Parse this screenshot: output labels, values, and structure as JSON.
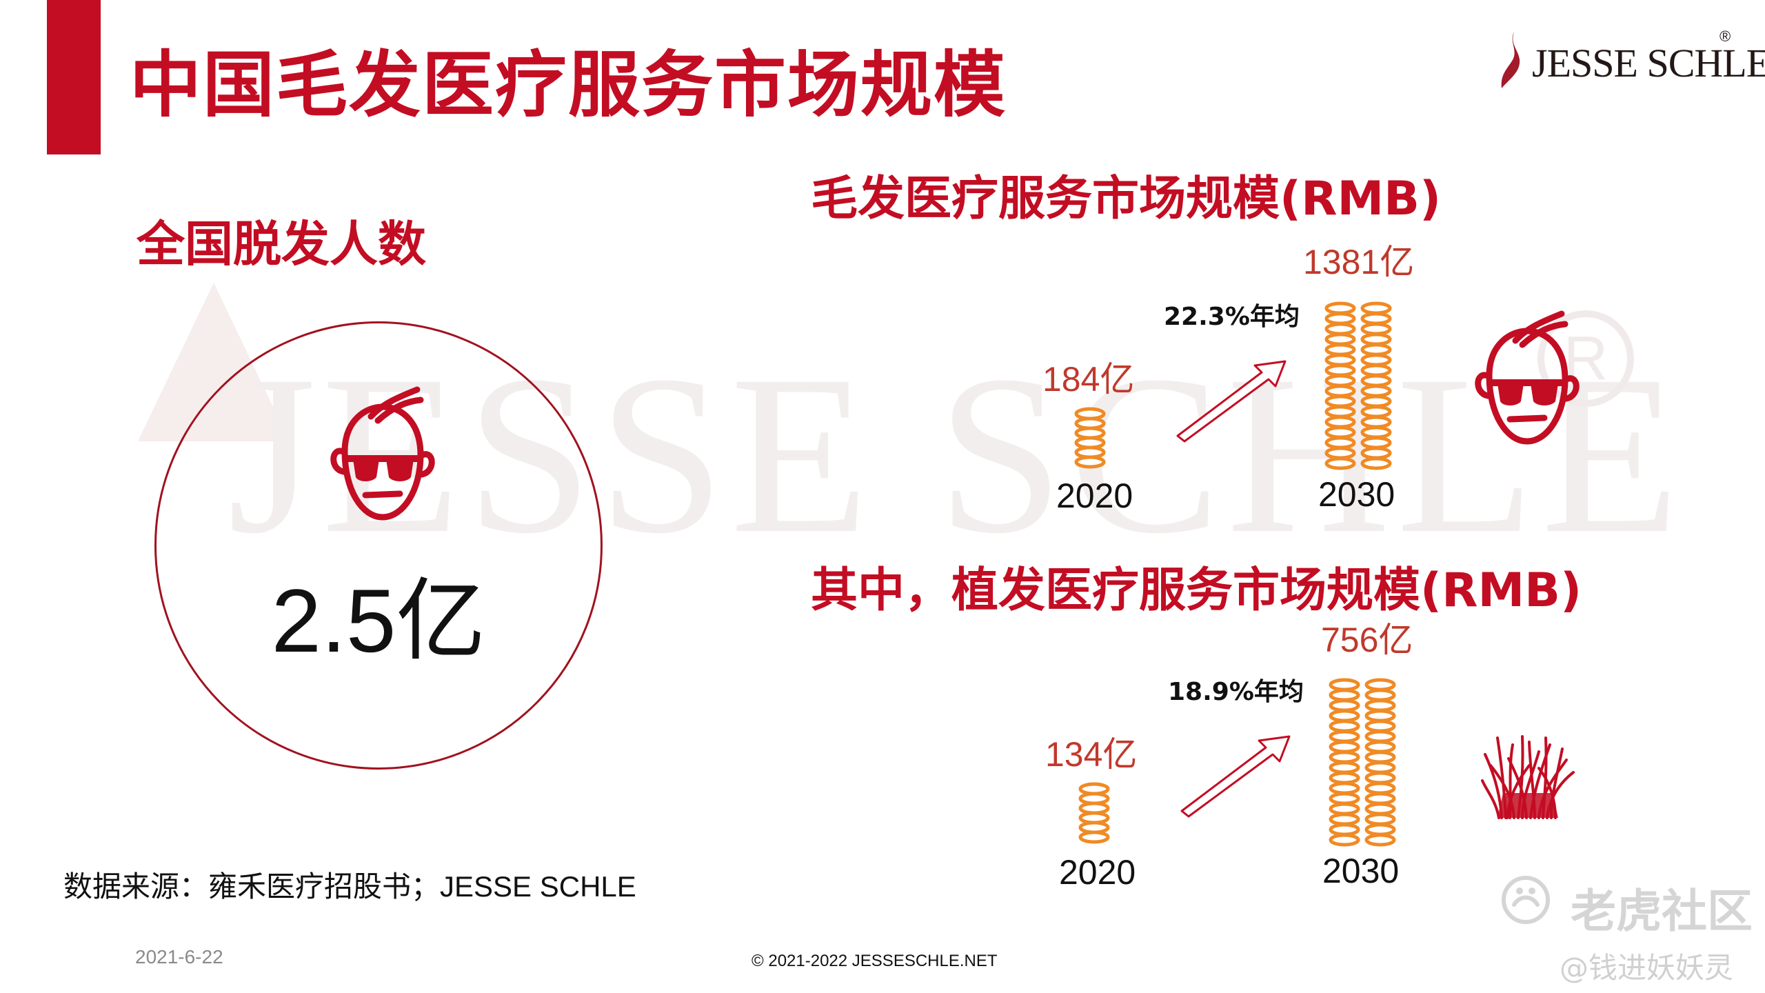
{
  "title": "中国毛发医疗服务市场规模",
  "logo": {
    "text": "JESSE SCHLE",
    "registered": "®"
  },
  "left": {
    "heading": "全国脱发人数",
    "value": "2.5亿"
  },
  "market": {
    "title": "毛发医疗服务市场规模(RMB)",
    "value_2020": "184亿",
    "value_2030": "1381亿",
    "growth": "22.3%年均",
    "year_2020": "2020",
    "year_2030": "2030"
  },
  "transplant": {
    "title": "其中，植发医疗服务市场规模(RMB)",
    "value_2020": "134亿",
    "value_2030": "756亿",
    "growth": "18.9%年均",
    "year_2020": "2020",
    "year_2030": "2030"
  },
  "source": {
    "label": "数据来源：雍禾医疗招股书；",
    "brand": "JESSE SCHLE"
  },
  "footer": {
    "date": "2021-6-22",
    "copyright": "© 2021-2022 JESSESCHLE.NET"
  },
  "overlay_watermark": {
    "brand": "老虎社区",
    "user": "@钱进妖妖灵"
  },
  "colors": {
    "accent": "#c30d23",
    "coin": "#f08a24",
    "text": "#111111"
  }
}
